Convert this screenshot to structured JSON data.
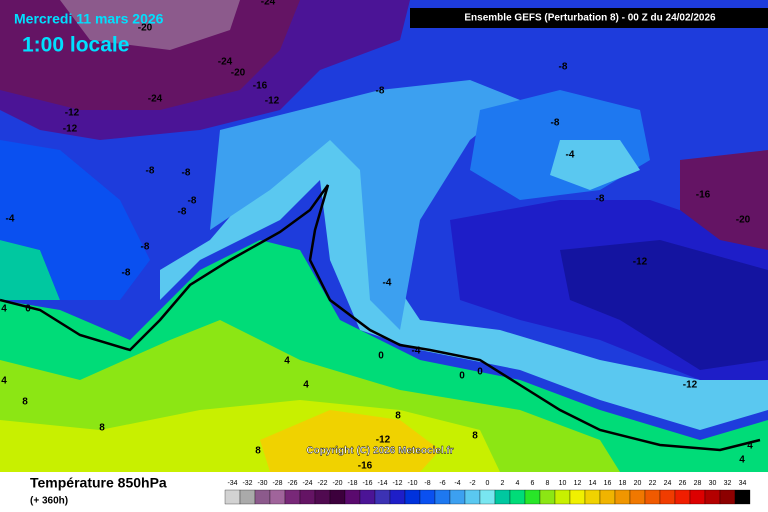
{
  "header": {
    "date": "Mercredi 11 mars 2026",
    "time": "1:00 locale",
    "model": "Ensemble GEFS  (Perturbation 8)  -  00 Z du 24/02/2026"
  },
  "footer": {
    "variable": "Température 850hPa",
    "lead": "(+ 360h)",
    "copyright": "Copyright (C) 2026 Meteociel.fr"
  },
  "contour_labels": [
    -24,
    -20,
    -24,
    -20,
    -16,
    -12,
    -24,
    -8,
    -8,
    -12,
    -12,
    -8,
    -4,
    -8,
    -8,
    -8,
    -8,
    -8,
    -16,
    -4,
    -20,
    -8,
    -12,
    -8,
    -4,
    0,
    4,
    0,
    -4,
    4,
    0,
    0,
    -12,
    4,
    4,
    8,
    8,
    8,
    -12,
    8,
    8,
    -16,
    4,
    4
  ],
  "scale": [
    {
      "value": -34,
      "color": "#d2d2d2"
    },
    {
      "value": -32,
      "color": "#aaaaaa"
    },
    {
      "value": -30,
      "color": "#8c5a8c"
    },
    {
      "value": -28,
      "color": "#a0649b"
    },
    {
      "value": -26,
      "color": "#782878"
    },
    {
      "value": -24,
      "color": "#641464"
    },
    {
      "value": -22,
      "color": "#500a50"
    },
    {
      "value": -20,
      "color": "#3c003c"
    },
    {
      "value": -18,
      "color": "#5a0a6e"
    },
    {
      "value": -16,
      "color": "#4b1496"
    },
    {
      "value": -14,
      "color": "#3c32b4"
    },
    {
      "value": -12,
      "color": "#1e1ec8"
    },
    {
      "value": -10,
      "color": "#0032dc"
    },
    {
      "value": -8,
      "color": "#0a50f0"
    },
    {
      "value": -6,
      "color": "#1e78f0"
    },
    {
      "value": -4,
      "color": "#3ca0f0"
    },
    {
      "value": -2,
      "color": "#5ac8f0"
    },
    {
      "value": 0,
      "color": "#78e6f0"
    },
    {
      "value": 2,
      "color": "#00c8a0"
    },
    {
      "value": 4,
      "color": "#00dc78"
    },
    {
      "value": 6,
      "color": "#28e628"
    },
    {
      "value": 8,
      "color": "#8ce614"
    },
    {
      "value": 10,
      "color": "#c8f000"
    },
    {
      "value": 12,
      "color": "#f0f000"
    },
    {
      "value": 14,
      "color": "#f0d200"
    },
    {
      "value": 16,
      "color": "#f0b400"
    },
    {
      "value": 18,
      "color": "#f09600"
    },
    {
      "value": 20,
      "color": "#f07800"
    },
    {
      "value": 22,
      "color": "#f05a00"
    },
    {
      "value": 24,
      "color": "#f03c00"
    },
    {
      "value": 26,
      "color": "#f01e00"
    },
    {
      "value": 28,
      "color": "#dc0000"
    },
    {
      "value": 30,
      "color": "#b40000"
    },
    {
      "value": 32,
      "color": "#8c0000"
    },
    {
      "value": 34,
      "color": "#000000"
    }
  ]
}
